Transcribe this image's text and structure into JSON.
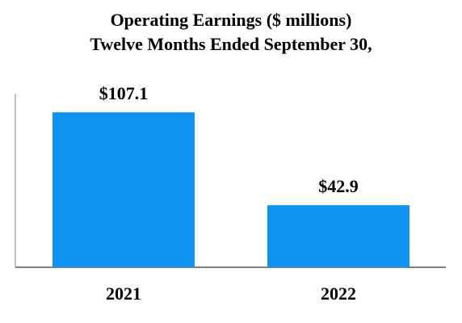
{
  "chart_data": {
    "type": "bar",
    "title": "Operating Earnings ($ millions)",
    "subtitle": "Twelve Months Ended September 30,",
    "categories": [
      "2021",
      "2022"
    ],
    "values": [
      107.1,
      42.9
    ],
    "data_labels": [
      "$107.1",
      "$42.9"
    ],
    "xlabel": "",
    "ylabel": "",
    "ylim": [
      0,
      120
    ],
    "grid": false,
    "legend": "none",
    "colors": {
      "bar": "#1092F0",
      "axis": "#808080"
    }
  }
}
